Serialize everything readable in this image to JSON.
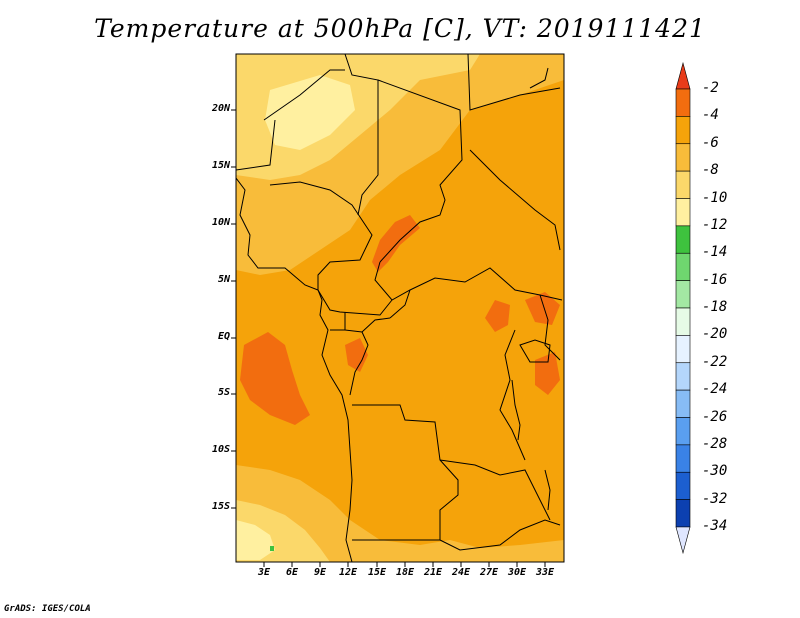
{
  "title": "Temperature at 500hPa [C], VT: 2019111421",
  "credit": "GrADS: IGES/COLA",
  "lat_labels": [
    "20N",
    "15N",
    "10N",
    "5N",
    "EQ",
    "5S",
    "10S",
    "15S"
  ],
  "lon_labels": [
    "3E",
    "6E",
    "9E",
    "12E",
    "15E",
    "18E",
    "21E",
    "24E",
    "27E",
    "30E",
    "33E"
  ],
  "colorbar": {
    "labels": [
      "-2",
      "-4",
      "-6",
      "-8",
      "-10",
      "-12",
      "-14",
      "-16",
      "-18",
      "-20",
      "-22",
      "-24",
      "-26",
      "-28",
      "-30",
      "-32",
      "-34"
    ],
    "colors": [
      "#e8561f",
      "#f26d0f",
      "#f5a30a",
      "#f8bc3a",
      "#fbd86a",
      "#fff0a0",
      "#3ec23e",
      "#6fd66f",
      "#a3e8a3",
      "#e6fbe6",
      "#e6f2ff",
      "#b4d6fb",
      "#87bcf5",
      "#5a9ff0",
      "#3a82e6",
      "#1c5fd0",
      "#0c40b0",
      "#0a1a78"
    ],
    "top_arrow": "#e83c1a",
    "bottom_arrow": "#dfe6ff"
  },
  "map_colors": {
    "base": "#f5a30a",
    "warm": "#f26d0f",
    "mild": "#f8bc3a",
    "cool": "#fbd86a",
    "cold": "#fff0a0",
    "green": "#3ec23e"
  }
}
